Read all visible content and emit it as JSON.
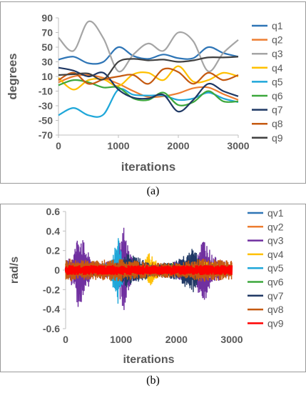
{
  "captions": {
    "a": "(a)",
    "b": "(b)"
  },
  "chart_data": [
    {
      "type": "line",
      "xlabel": "iterations",
      "ylabel": "degrees",
      "xlim": [
        0,
        3000
      ],
      "ylim": [
        -70,
        90
      ],
      "xticks": [
        0,
        1000,
        2000,
        3000
      ],
      "yticks": [
        -70,
        -50,
        -30,
        -10,
        10,
        30,
        50,
        70,
        90
      ],
      "x_tick_labels": [
        "0",
        "1000",
        "2000",
        "3000"
      ],
      "y_tick_labels": [
        "-70",
        "-50",
        "-30",
        "-10",
        "10",
        "30",
        "50",
        "70",
        "90"
      ],
      "grid": false,
      "legend": "right",
      "x": [
        0,
        250,
        500,
        750,
        1000,
        1250,
        1500,
        1750,
        2000,
        2250,
        2500,
        2750,
        3000
      ],
      "series": [
        {
          "name": "q1",
          "color": "#2E75B6",
          "values": [
            33,
            37,
            28,
            30,
            50,
            38,
            34,
            40,
            35,
            35,
            50,
            42,
            37
          ]
        },
        {
          "name": "q2",
          "color": "#ED7D31",
          "values": [
            2,
            10,
            12,
            8,
            0,
            -10,
            -18,
            -17,
            -13,
            -6,
            -5,
            -14,
            -22
          ]
        },
        {
          "name": "q3",
          "color": "#A5A5A5",
          "values": [
            63,
            45,
            85,
            62,
            17,
            40,
            55,
            45,
            70,
            58,
            17,
            42,
            60
          ]
        },
        {
          "name": "q4",
          "color": "#FFC000",
          "values": [
            8,
            -8,
            5,
            6,
            -3,
            13,
            15,
            5,
            24,
            3,
            5,
            15,
            10
          ]
        },
        {
          "name": "q5",
          "color": "#1FA7D9",
          "values": [
            -43,
            -33,
            -43,
            -42,
            -8,
            -15,
            -16,
            -16,
            -22,
            -20,
            -12,
            -20,
            -25
          ]
        },
        {
          "name": "q6",
          "color": "#3CA73C",
          "values": [
            -2,
            5,
            2,
            -5,
            -5,
            -20,
            -22,
            -12,
            -29,
            -25,
            -10,
            -24,
            -24
          ]
        },
        {
          "name": "q7",
          "color": "#1F3864",
          "values": [
            22,
            18,
            10,
            15,
            -8,
            -19,
            -20,
            -15,
            -38,
            -22,
            0,
            -10,
            -17
          ]
        },
        {
          "name": "q8",
          "color": "#C55A11",
          "values": [
            5,
            15,
            0,
            6,
            10,
            12,
            0,
            20,
            16,
            0,
            15,
            5,
            12
          ]
        },
        {
          "name": "q9",
          "color": "#404040",
          "values": [
            12,
            13,
            14,
            6,
            30,
            34,
            32,
            33,
            30,
            32,
            36,
            36,
            37
          ]
        }
      ]
    },
    {
      "type": "line",
      "xlabel": "iterations",
      "ylabel": "rad/s",
      "xlim": [
        0,
        3000
      ],
      "ylim": [
        -0.6,
        0.6
      ],
      "xticks": [
        0,
        1000,
        2000,
        3000
      ],
      "yticks": [
        -0.6,
        -0.4,
        -0.2,
        0,
        0.2,
        0.4,
        0.6
      ],
      "x_tick_labels": [
        "0",
        "1000",
        "2000",
        "3000"
      ],
      "y_tick_labels": [
        "-0.6",
        "-0.4",
        "-0.2",
        "0",
        "0.2",
        "0.4",
        "0.6"
      ],
      "grid": false,
      "legend": "right",
      "series": [
        {
          "name": "qv1",
          "color": "#2E75B6",
          "envelope": [
            [
              0,
              0.04
            ],
            [
              300,
              0.05
            ],
            [
              900,
              0.06
            ],
            [
              1000,
              0.12
            ],
            [
              1100,
              0.05
            ],
            [
              1800,
              0.05
            ],
            [
              2000,
              0.08
            ],
            [
              2300,
              0.1
            ],
            [
              2500,
              0.04
            ],
            [
              3000,
              0.04
            ]
          ]
        },
        {
          "name": "qv2",
          "color": "#ED7D31",
          "envelope": [
            [
              0,
              0.04
            ],
            [
              600,
              0.05
            ],
            [
              1000,
              0.08
            ],
            [
              1500,
              0.05
            ],
            [
              2400,
              0.06
            ],
            [
              3000,
              0.05
            ]
          ]
        },
        {
          "name": "qv3",
          "color": "#7030A0",
          "envelope": [
            [
              0,
              0.08
            ],
            [
              150,
              0.2
            ],
            [
              250,
              0.44
            ],
            [
              350,
              0.25
            ],
            [
              500,
              0.08
            ],
            [
              900,
              0.1
            ],
            [
              1050,
              0.46
            ],
            [
              1150,
              0.2
            ],
            [
              1300,
              0.06
            ],
            [
              1700,
              0.05
            ],
            [
              2300,
              0.14
            ],
            [
              2500,
              0.35
            ],
            [
              2650,
              0.15
            ],
            [
              3000,
              0.05
            ]
          ]
        },
        {
          "name": "qv4",
          "color": "#FFC000",
          "envelope": [
            [
              0,
              0.04
            ],
            [
              800,
              0.07
            ],
            [
              1000,
              0.1
            ],
            [
              1400,
              0.08
            ],
            [
              1500,
              0.18
            ],
            [
              1700,
              0.06
            ],
            [
              2200,
              0.06
            ],
            [
              2400,
              0.1
            ],
            [
              3000,
              0.05
            ]
          ]
        },
        {
          "name": "qv5",
          "color": "#1FA7D9",
          "envelope": [
            [
              0,
              0.03
            ],
            [
              800,
              0.08
            ],
            [
              950,
              0.36
            ],
            [
              1050,
              0.1
            ],
            [
              1800,
              0.05
            ],
            [
              2300,
              0.07
            ],
            [
              3000,
              0.04
            ]
          ]
        },
        {
          "name": "qv6",
          "color": "#3CA73C",
          "envelope": [
            [
              0,
              0.04
            ],
            [
              600,
              0.05
            ],
            [
              1200,
              0.06
            ],
            [
              1700,
              0.06
            ],
            [
              2000,
              0.08
            ],
            [
              2500,
              0.06
            ],
            [
              3000,
              0.05
            ]
          ]
        },
        {
          "name": "qv7",
          "color": "#1F3864",
          "envelope": [
            [
              0,
              0.05
            ],
            [
              900,
              0.06
            ],
            [
              1100,
              0.18
            ],
            [
              1600,
              0.06
            ],
            [
              2000,
              0.1
            ],
            [
              2300,
              0.24
            ],
            [
              2450,
              0.08
            ],
            [
              3000,
              0.04
            ]
          ]
        },
        {
          "name": "qv8",
          "color": "#C55A11",
          "envelope": [
            [
              0,
              0.12
            ],
            [
              500,
              0.1
            ],
            [
              1000,
              0.12
            ],
            [
              1500,
              0.08
            ],
            [
              2000,
              0.08
            ],
            [
              2500,
              0.12
            ],
            [
              3000,
              0.1
            ]
          ]
        },
        {
          "name": "qv9",
          "color": "#FF0000",
          "envelope": [
            [
              0,
              0.05
            ],
            [
              500,
              0.05
            ],
            [
              1000,
              0.05
            ],
            [
              1500,
              0.05
            ],
            [
              2000,
              0.05
            ],
            [
              2500,
              0.05
            ],
            [
              3000,
              0.05
            ]
          ]
        }
      ]
    }
  ]
}
